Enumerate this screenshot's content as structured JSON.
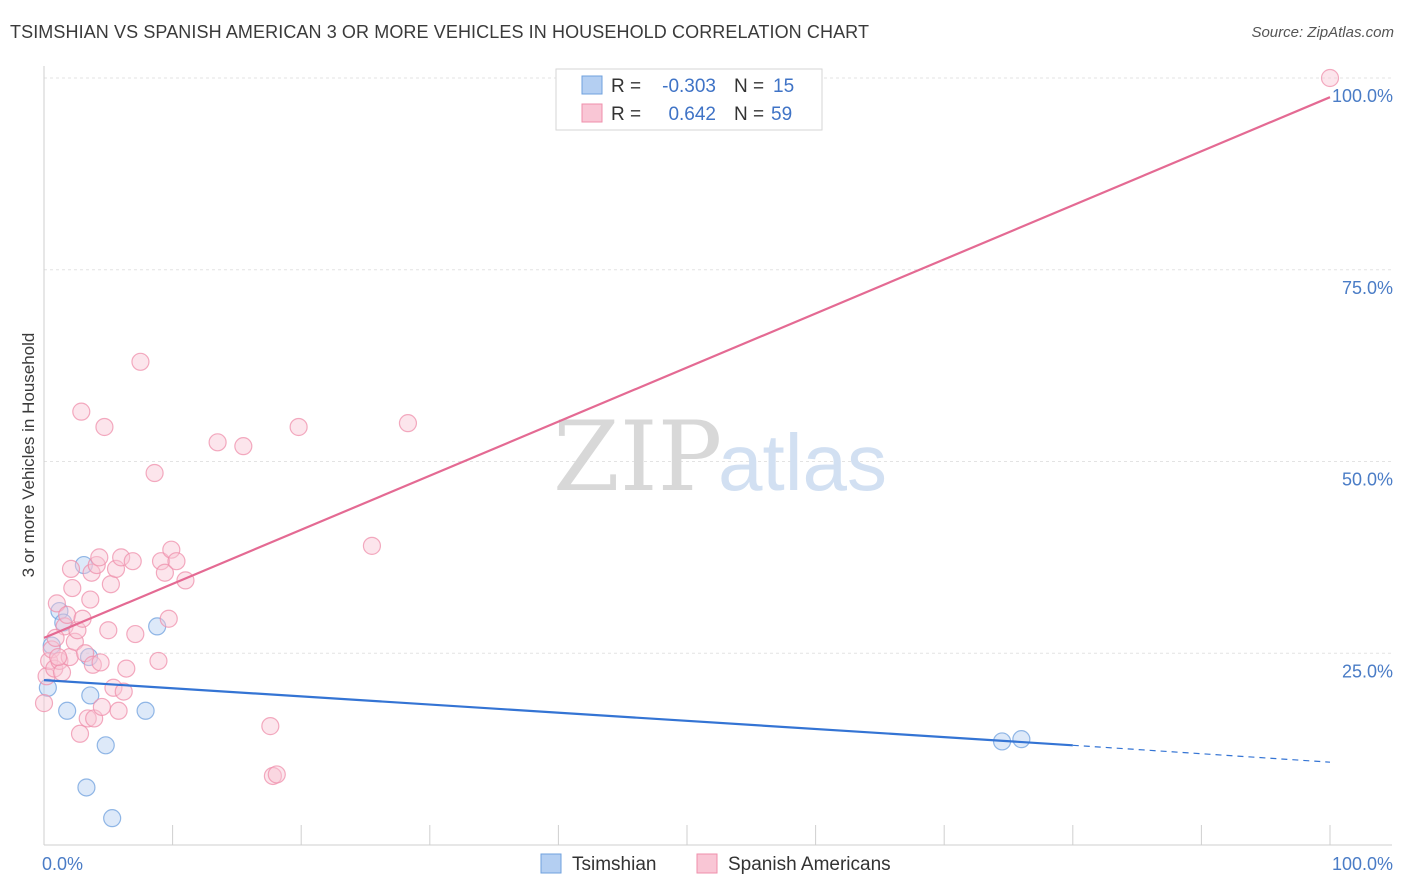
{
  "title": "TSIMSHIAN VS SPANISH AMERICAN 3 OR MORE VEHICLES IN HOUSEHOLD CORRELATION CHART",
  "source": "Source: ZipAtlas.com",
  "watermark": {
    "zip": "ZIP",
    "atlas": "atlas"
  },
  "legend": {
    "rows": [
      {
        "r_label": "R =",
        "r_value": "-0.303",
        "n_label": "N =",
        "n_value": "15",
        "color": "#a8c8f0"
      },
      {
        "r_label": "R =",
        "r_value": "0.642",
        "n_label": "N =",
        "n_value": "59",
        "color": "#f7b7cb"
      }
    ]
  },
  "bottom_legend": [
    {
      "label": "Tsimshian",
      "color": "#a8c8f0"
    },
    {
      "label": "Spanish Americans",
      "color": "#f7b7cb"
    }
  ],
  "chart_data": {
    "type": "scatter",
    "title": "TSIMSHIAN VS SPANISH AMERICAN 3 OR MORE VEHICLES IN HOUSEHOLD CORRELATION CHART",
    "xlabel": "",
    "ylabel": "3 or more Vehicles in Household",
    "xlim": [
      0,
      100
    ],
    "ylim": [
      0,
      100
    ],
    "x_tick_labels": [
      "0.0%",
      "100.0%"
    ],
    "y_ticks": [
      {
        "value": 25,
        "label": "25.0%"
      },
      {
        "value": 50,
        "label": "50.0%"
      },
      {
        "value": 75,
        "label": "75.0%"
      },
      {
        "value": 100,
        "label": "100.0%"
      }
    ],
    "grid": "horizontal dashed",
    "legend_position": "top-center",
    "series": [
      {
        "name": "Tsimshian",
        "color": "#6fa0de",
        "fill": "#b4cff2",
        "trend": {
          "x0": 0,
          "y0": 21.5,
          "x1": 80,
          "y1": 13,
          "dashed_to_x": 100,
          "dashed_y": 10.8,
          "color": "#3474d4"
        },
        "points": [
          [
            0.3,
            20.5
          ],
          [
            0.6,
            26.0
          ],
          [
            1.2,
            30.5
          ],
          [
            1.5,
            29.0
          ],
          [
            1.8,
            17.5
          ],
          [
            3.1,
            36.5
          ],
          [
            3.5,
            24.5
          ],
          [
            3.3,
            7.5
          ],
          [
            3.6,
            19.5
          ],
          [
            4.8,
            13.0
          ],
          [
            5.3,
            3.5
          ],
          [
            7.9,
            17.5
          ],
          [
            8.8,
            28.5
          ],
          [
            74.5,
            13.5
          ],
          [
            76.0,
            13.8
          ]
        ]
      },
      {
        "name": "Spanish Americans",
        "color": "#ef8fab",
        "fill": "#f9c6d5",
        "trend": {
          "x0": 0,
          "y0": 27,
          "x1": 100,
          "y1": 97.5,
          "color": "#e46a93"
        },
        "points": [
          [
            0.0,
            18.5
          ],
          [
            0.2,
            22.0
          ],
          [
            0.4,
            24.0
          ],
          [
            0.6,
            25.5
          ],
          [
            0.8,
            23.0
          ],
          [
            1.0,
            31.5
          ],
          [
            1.2,
            24.0
          ],
          [
            1.4,
            22.5
          ],
          [
            1.6,
            28.5
          ],
          [
            1.8,
            30.0
          ],
          [
            2.0,
            24.5
          ],
          [
            2.2,
            33.5
          ],
          [
            2.4,
            26.5
          ],
          [
            2.6,
            28.0
          ],
          [
            2.8,
            14.5
          ],
          [
            3.0,
            29.5
          ],
          [
            3.2,
            25.0
          ],
          [
            3.4,
            16.5
          ],
          [
            3.6,
            32.0
          ],
          [
            3.7,
            35.5
          ],
          [
            3.9,
            16.5
          ],
          [
            4.1,
            36.5
          ],
          [
            4.3,
            37.5
          ],
          [
            4.5,
            18.0
          ],
          [
            4.7,
            54.5
          ],
          [
            5.0,
            28.0
          ],
          [
            5.2,
            34.0
          ],
          [
            5.4,
            20.5
          ],
          [
            5.6,
            36.0
          ],
          [
            5.8,
            17.5
          ],
          [
            6.0,
            37.5
          ],
          [
            6.2,
            20.0
          ],
          [
            6.4,
            23.0
          ],
          [
            6.9,
            37.0
          ],
          [
            7.1,
            27.5
          ],
          [
            7.5,
            63.0
          ],
          [
            8.6,
            48.5
          ],
          [
            8.9,
            24.0
          ],
          [
            9.1,
            37.0
          ],
          [
            9.4,
            35.5
          ],
          [
            9.7,
            29.5
          ],
          [
            9.9,
            38.5
          ],
          [
            10.3,
            37.0
          ],
          [
            11.0,
            34.5
          ],
          [
            13.5,
            52.5
          ],
          [
            15.5,
            52.0
          ],
          [
            17.6,
            15.5
          ],
          [
            17.8,
            9.0
          ],
          [
            18.1,
            9.2
          ],
          [
            19.8,
            54.5
          ],
          [
            25.5,
            39.0
          ],
          [
            28.3,
            55.0
          ],
          [
            100.0,
            100.0
          ],
          [
            1.1,
            24.5
          ],
          [
            0.9,
            27.0
          ],
          [
            2.1,
            36.0
          ],
          [
            3.8,
            23.5
          ],
          [
            4.4,
            23.8
          ],
          [
            2.9,
            56.5
          ]
        ]
      }
    ]
  }
}
